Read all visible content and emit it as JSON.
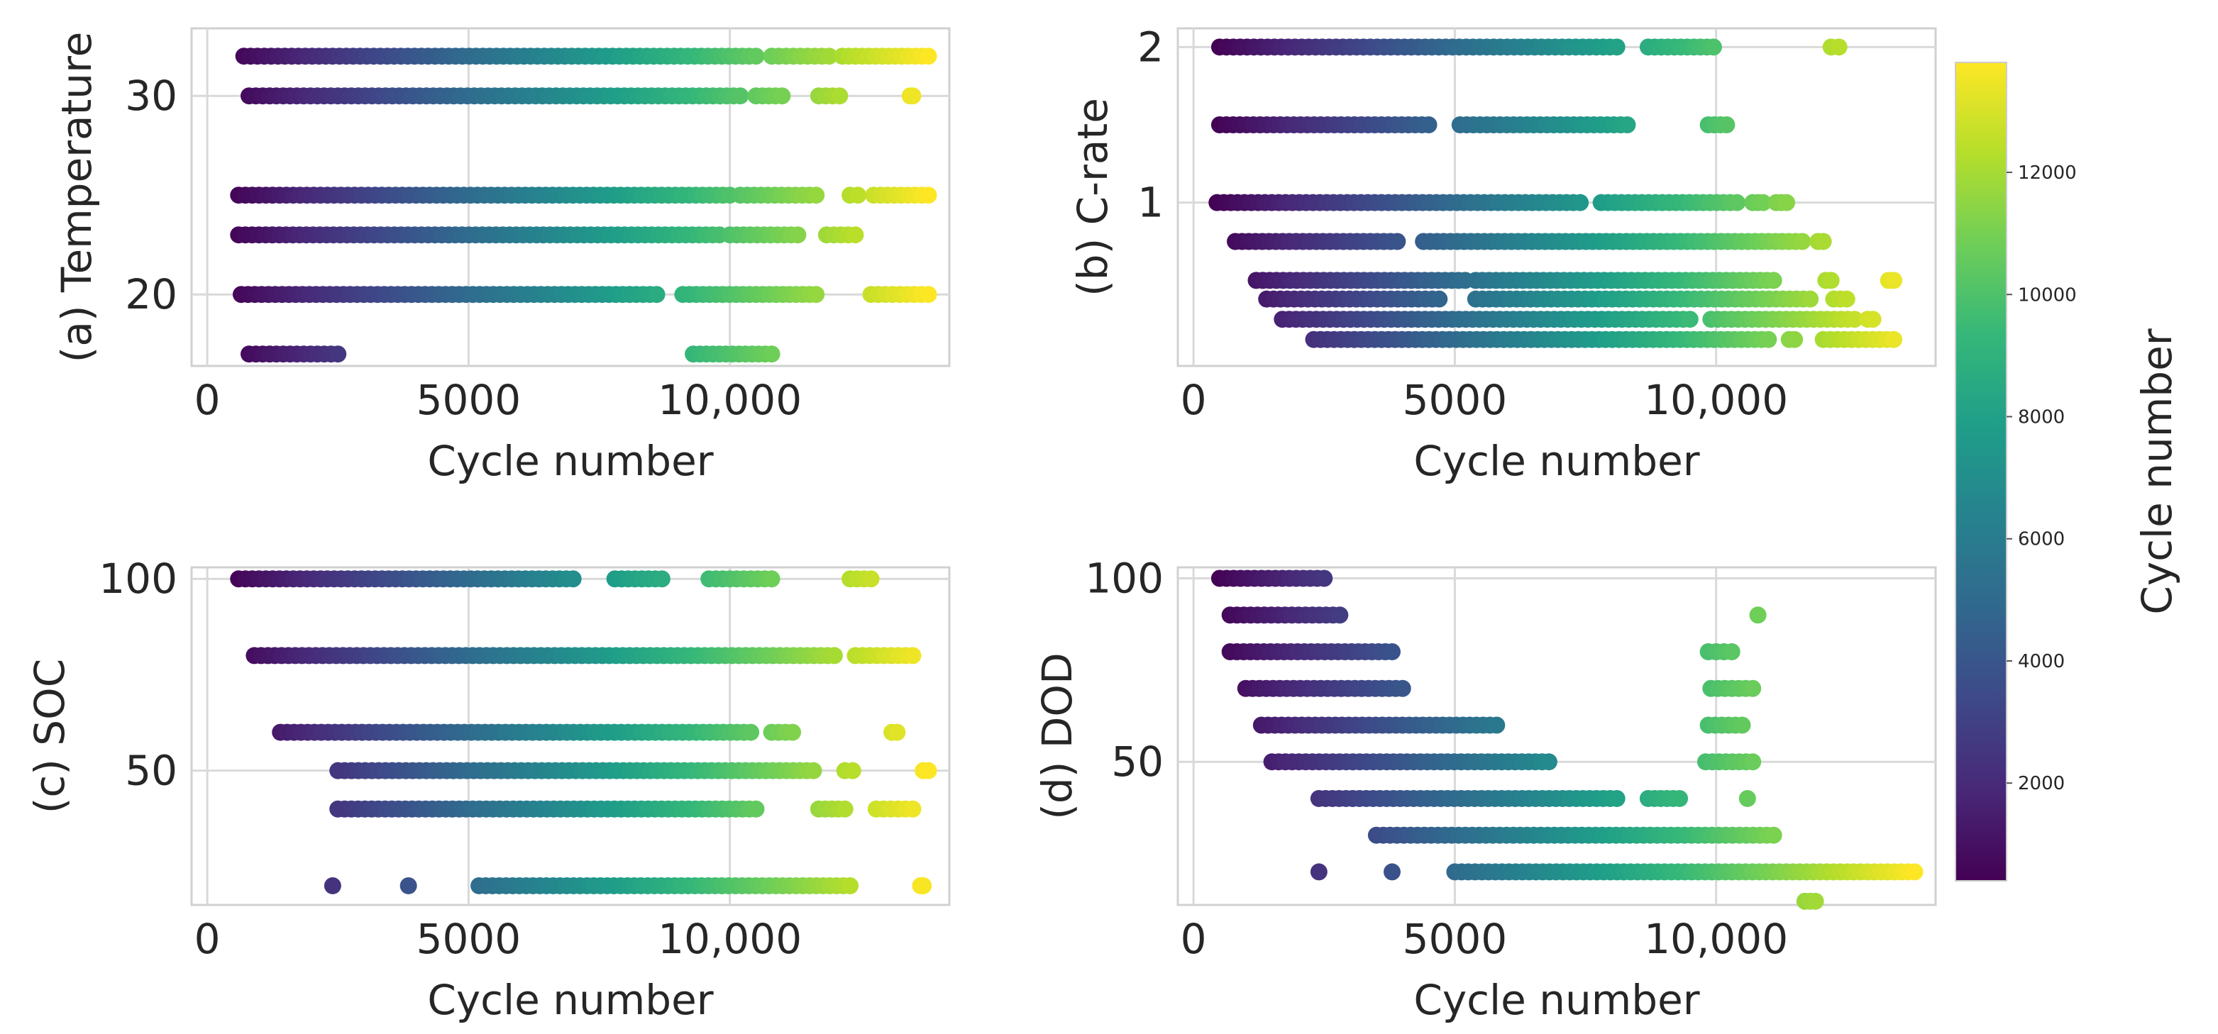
{
  "chart_data": [
    {
      "type": "scatter",
      "id": "temperature",
      "ylabel": "(a) Temperature",
      "xlabel": "Cycle number",
      "xlim": [
        -300,
        14200
      ],
      "ylim": [
        16.4,
        33.4
      ],
      "xticks": [
        0,
        5000,
        10000
      ],
      "xtick_labels": [
        "0",
        "5000",
        "10,000"
      ],
      "yticks": [
        20,
        30
      ],
      "ytick_labels": [
        "20",
        "30"
      ],
      "grid": true,
      "series": [
        {
          "y": 32,
          "segments": [
            [
              700,
              10500
            ],
            [
              10800,
              11900
            ],
            [
              12150,
              13800
            ]
          ]
        },
        {
          "y": 30,
          "segments": [
            [
              800,
              10200
            ],
            [
              10500,
              11000
            ],
            [
              11700,
              12100
            ],
            [
              13450,
              13500
            ]
          ]
        },
        {
          "y": 25,
          "segments": [
            [
              600,
              10000
            ],
            [
              10200,
              11650
            ],
            [
              12300,
              12450
            ],
            [
              12750,
              13800
            ]
          ]
        },
        {
          "y": 23,
          "segments": [
            [
              600,
              9800
            ],
            [
              10000,
              11300
            ],
            [
              11850,
              12400
            ]
          ]
        },
        {
          "y": 20,
          "segments": [
            [
              650,
              8600
            ],
            [
              9100,
              11650
            ],
            [
              12700,
              13800
            ]
          ]
        },
        {
          "y": 17,
          "segments": [
            [
              800,
              2500
            ],
            [
              9300,
              10800
            ]
          ]
        }
      ]
    },
    {
      "type": "scatter",
      "id": "c-rate",
      "ylabel": "(b) C-rate",
      "xlabel": "Cycle number",
      "xlim": [
        -300,
        14200
      ],
      "ylim": [
        -0.05,
        2.12
      ],
      "xticks": [
        0,
        5000,
        10000
      ],
      "xtick_labels": [
        "0",
        "5000",
        "10,000"
      ],
      "yticks": [
        1,
        2
      ],
      "ytick_labels": [
        "1",
        "2"
      ],
      "grid": true,
      "series": [
        {
          "y": 2.0,
          "segments": [
            [
              500,
              8100
            ],
            [
              8700,
              9950
            ],
            [
              12200,
              12350
            ]
          ]
        },
        {
          "y": 1.5,
          "segments": [
            [
              500,
              4500
            ],
            [
              5100,
              8300
            ],
            [
              9850,
              10200
            ]
          ]
        },
        {
          "y": 1.0,
          "segments": [
            [
              450,
              7400
            ],
            [
              7800,
              10400
            ],
            [
              10700,
              10900
            ],
            [
              11150,
              11350
            ]
          ]
        },
        {
          "y": 0.75,
          "segments": [
            [
              800,
              3900
            ],
            [
              4400,
              11650
            ],
            [
              11950,
              12050
            ]
          ]
        },
        {
          "y": 0.5,
          "segments": [
            [
              1200,
              5200
            ],
            [
              5400,
              11100
            ],
            [
              12100,
              12200
            ],
            [
              13300,
              13400
            ]
          ]
        },
        {
          "y": 0.38,
          "segments": [
            [
              1400,
              4700
            ],
            [
              5400,
              11800
            ],
            [
              12250,
              12500
            ]
          ]
        },
        {
          "y": 0.25,
          "segments": [
            [
              1700,
              9500
            ],
            [
              9900,
              12650
            ],
            [
              12900,
              13000
            ]
          ]
        },
        {
          "y": 0.12,
          "segments": [
            [
              2300,
              11000
            ],
            [
              11400,
              11500
            ],
            [
              12050,
              13400
            ]
          ]
        }
      ]
    },
    {
      "type": "scatter",
      "id": "soc",
      "ylabel": "(c) SOC",
      "xlabel": "Cycle number",
      "xlim": [
        -300,
        14200
      ],
      "ylim": [
        15,
        103
      ],
      "xticks": [
        0,
        5000,
        10000
      ],
      "xtick_labels": [
        "0",
        "5000",
        "10,000"
      ],
      "yticks": [
        50,
        100
      ],
      "ytick_labels": [
        "50",
        "100"
      ],
      "grid": true,
      "series": [
        {
          "y": 100,
          "segments": [
            [
              600,
              7000
            ],
            [
              7800,
              8700
            ],
            [
              9600,
              10800
            ],
            [
              12300,
              12700
            ]
          ]
        },
        {
          "y": 80,
          "segments": [
            [
              900,
              12000
            ],
            [
              12400,
              13500
            ]
          ]
        },
        {
          "y": 60,
          "segments": [
            [
              1400,
              10400
            ],
            [
              10800,
              11200
            ],
            [
              13100,
              13200
            ]
          ]
        },
        {
          "y": 50,
          "segments": [
            [
              2500,
              11600
            ],
            [
              12200,
              12350
            ],
            [
              13700,
              13800
            ]
          ]
        },
        {
          "y": 40,
          "segments": [
            [
              2500,
              10500
            ],
            [
              11700,
              12200
            ],
            [
              12800,
              13500
            ]
          ]
        },
        {
          "y": 20,
          "segments": [
            [
              2400,
              2400
            ],
            [
              3850,
              3850
            ],
            [
              5200,
              12300
            ],
            [
              13650,
              13700
            ]
          ]
        }
      ]
    },
    {
      "type": "scatter",
      "id": "dod",
      "ylabel": "(d) DOD",
      "xlabel": "Cycle number",
      "xlim": [
        -300,
        14200
      ],
      "ylim": [
        11,
        103
      ],
      "xticks": [
        0,
        5000,
        10000
      ],
      "xtick_labels": [
        "0",
        "5000",
        "10,000"
      ],
      "yticks": [
        50,
        100
      ],
      "ytick_labels": [
        "50",
        "100"
      ],
      "grid": true,
      "series": [
        {
          "y": 100,
          "segments": [
            [
              500,
              2500
            ]
          ]
        },
        {
          "y": 90,
          "segments": [
            [
              700,
              2800
            ],
            [
              10800,
              10800
            ]
          ]
        },
        {
          "y": 80,
          "segments": [
            [
              700,
              3800
            ],
            [
              9850,
              10300
            ]
          ]
        },
        {
          "y": 70,
          "segments": [
            [
              1000,
              4000
            ],
            [
              9900,
              10700
            ]
          ]
        },
        {
          "y": 60,
          "segments": [
            [
              1300,
              5800
            ],
            [
              9850,
              10500
            ]
          ]
        },
        {
          "y": 50,
          "segments": [
            [
              1500,
              6800
            ],
            [
              9800,
              10700
            ]
          ]
        },
        {
          "y": 40,
          "segments": [
            [
              2400,
              8100
            ],
            [
              8700,
              9300
            ],
            [
              10600,
              10600
            ]
          ]
        },
        {
          "y": 30,
          "segments": [
            [
              3500,
              11100
            ]
          ]
        },
        {
          "y": 20,
          "segments": [
            [
              2400,
              2400
            ],
            [
              3800,
              3800
            ],
            [
              5000,
              13800
            ]
          ]
        },
        {
          "y": 12,
          "segments": [
            [
              11700,
              11900
            ]
          ]
        }
      ]
    }
  ],
  "colorbar": {
    "label": "Cycle number",
    "range": [
      400,
      13800
    ],
    "ticks": [
      2000,
      4000,
      6000,
      8000,
      10000,
      12000
    ],
    "tick_labels": [
      "2000",
      "4000",
      "6000",
      "8000",
      "10000",
      "12000"
    ],
    "colormap": [
      "#440154",
      "#482878",
      "#3e4989",
      "#31688e",
      "#26828e",
      "#1f9e89",
      "#35b779",
      "#6ece58",
      "#b5de2b",
      "#fde725"
    ]
  }
}
